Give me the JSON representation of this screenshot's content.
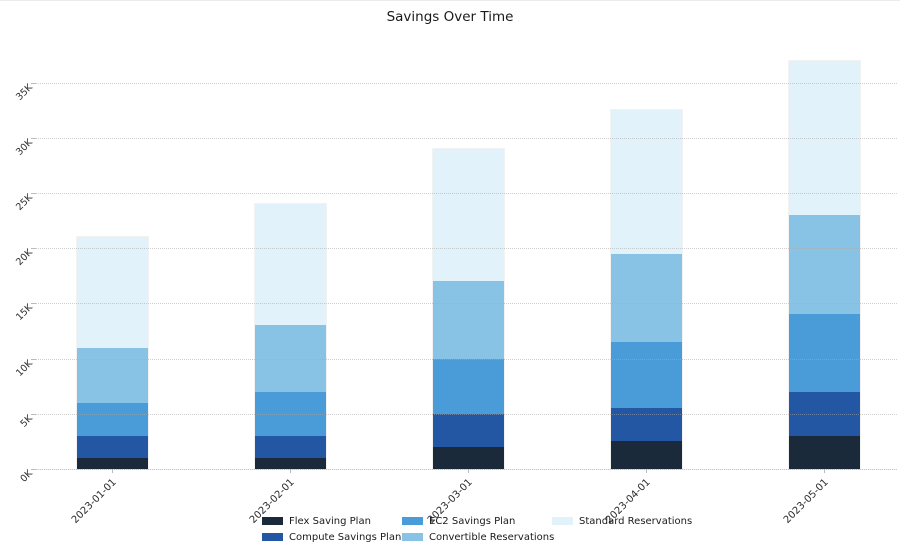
{
  "page": {
    "background": "#ffffff"
  },
  "chart_data": {
    "type": "bar",
    "stacked": true,
    "title": "Savings Over Time",
    "xlabel": "",
    "ylabel": "",
    "grid": true,
    "grid_style": "dotted",
    "legend_position": "bottom",
    "categories": [
      "2023-01-01",
      "2023-02-01",
      "2023-03-01",
      "2023-04-01",
      "2023-05-01"
    ],
    "series": [
      {
        "name": "Flex Saving Plan",
        "color": "#1b2a3a",
        "values": [
          1000,
          1000,
          2000,
          2500,
          3000
        ]
      },
      {
        "name": "Compute Savings Plan",
        "color": "#2356a3",
        "values": [
          2000,
          2000,
          3000,
          3000,
          4000
        ]
      },
      {
        "name": "EC2 Savings Plan",
        "color": "#4a9cd8",
        "values": [
          3000,
          4000,
          5000,
          6000,
          7000
        ]
      },
      {
        "name": "Convertible Reservations",
        "color": "#88c2e4",
        "values": [
          5000,
          6000,
          7000,
          8000,
          9000
        ]
      },
      {
        "name": "Standard Reservations",
        "color": "#e2f2fb",
        "values": [
          10000,
          11000,
          12000,
          13000,
          14000
        ]
      }
    ],
    "totals": [
      21000,
      24000,
      29000,
      32500,
      37000
    ],
    "y_tick_values": [
      0,
      5000,
      10000,
      15000,
      20000,
      25000,
      30000,
      35000
    ],
    "y_tick_labels": [
      "0K",
      "5K",
      "10K",
      "15K",
      "20K",
      "25K",
      "30K",
      "35K"
    ],
    "ylim": [
      0,
      38500
    ],
    "legend_columns": [
      [
        "Flex Saving Plan",
        "Compute Savings Plan"
      ],
      [
        "EC2 Savings Plan",
        "Convertible Reservations"
      ],
      [
        "Standard Reservations"
      ]
    ]
  }
}
